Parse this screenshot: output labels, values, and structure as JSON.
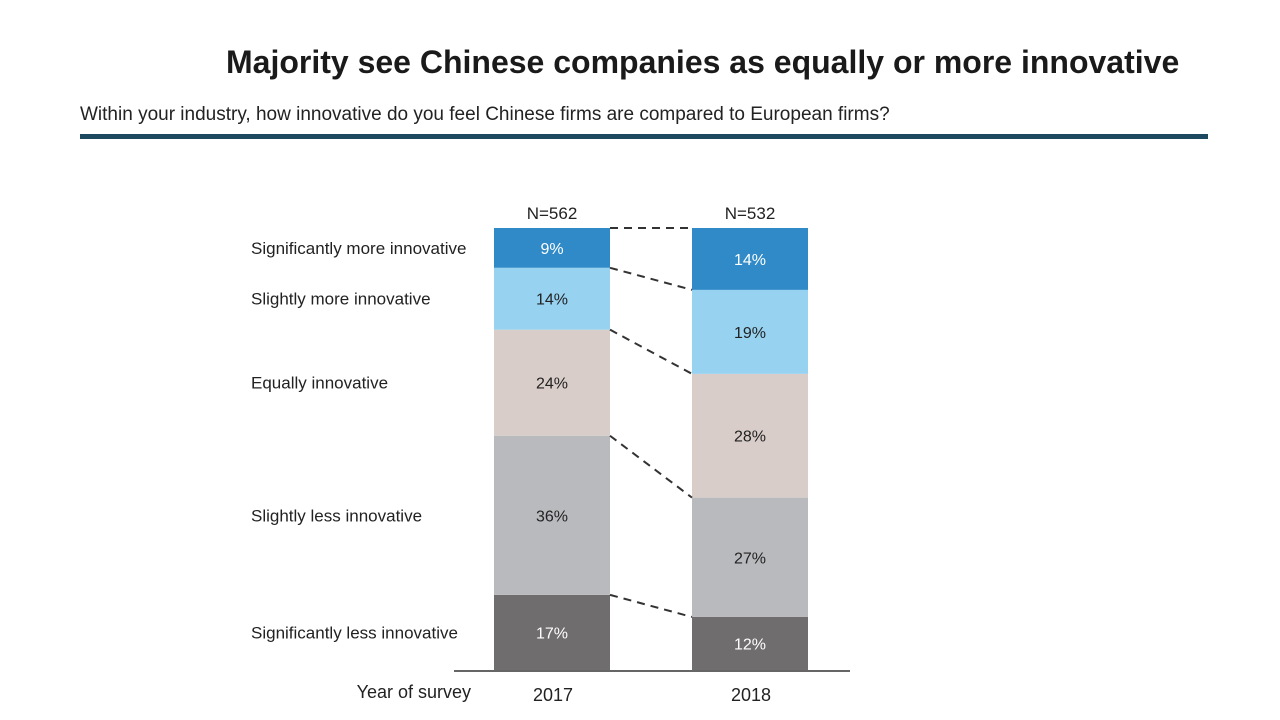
{
  "chart_data": {
    "type": "bar",
    "stacked": true,
    "normalized": true,
    "title": "Majority see Chinese companies as equally or more innovative",
    "subtitle": "Within your industry, how innovative do you feel Chinese firms are compared to European firms?",
    "xlabel": "Year of survey",
    "ylabel": "",
    "categories": [
      "2017",
      "2018"
    ],
    "sample_sizes": [
      "N=562",
      "N=532"
    ],
    "series": [
      {
        "name": "Significantly less innovative",
        "values": [
          17,
          12
        ],
        "labels": [
          "17%",
          "12%"
        ],
        "color": "#6f6d6e",
        "text_color": "#ffffff"
      },
      {
        "name": "Slightly less innovative",
        "values": [
          36,
          27
        ],
        "labels": [
          "36%",
          "27%"
        ],
        "color": "#b9babe",
        "text_color": "#222222"
      },
      {
        "name": "Equally innovative",
        "values": [
          24,
          28
        ],
        "labels": [
          "24%",
          "28%"
        ],
        "color": "#d8cdc8",
        "text_color": "#222222"
      },
      {
        "name": "Slightly more innovative",
        "values": [
          14,
          19
        ],
        "labels": [
          "14%",
          "19%"
        ],
        "color": "#97d2f1",
        "text_color": "#222222"
      },
      {
        "name": "Significantly more innovative",
        "values": [
          9,
          14
        ],
        "labels": [
          "9%",
          "14%"
        ],
        "color": "#2f8ac7",
        "text_color": "#ffffff"
      }
    ],
    "ylim": [
      0,
      100
    ],
    "grid": false,
    "legend": "left"
  },
  "colors": {
    "rule": "#1c4860",
    "axis": "#333333",
    "connector": "#333333"
  }
}
